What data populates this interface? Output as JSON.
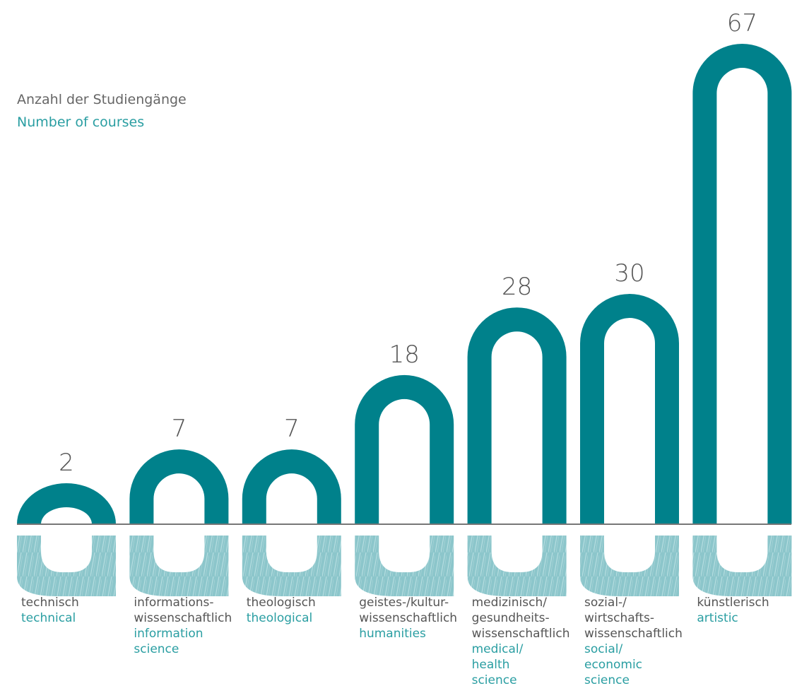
{
  "colors": {
    "bar": "#00818b",
    "hatch": "#8cc6cb",
    "hatch_line": "#b5dde0",
    "baseline": "#777777",
    "label_de": "#555555",
    "label_en": "#2a9ea2",
    "value": "#555555"
  },
  "chart_data": {
    "type": "bar",
    "title": "",
    "ylabel_de": "Anzahl der Studiengänge",
    "ylabel_en": "Number of courses",
    "categories": [
      {
        "de": "technisch",
        "en": "technical"
      },
      {
        "de": "informations-\nwissenschaftlich",
        "en": "information\nscience"
      },
      {
        "de": "theologisch",
        "en": "theological"
      },
      {
        "de": "geistes-/kultur-\nwissenschaftlich",
        "en": "humanities"
      },
      {
        "de": "medizinisch/\ngesundheits-\nwissenschaftlich",
        "en": "medical/\nhealth\nscience"
      },
      {
        "de": "sozial-/\nwirtschafts-\nwissenschaftlich",
        "en": "social/\neconomic\nscience"
      },
      {
        "de": "künstlerisch",
        "en": "artistic"
      }
    ],
    "values": [
      2,
      7,
      7,
      18,
      28,
      30,
      67
    ],
    "value_labels": [
      "2",
      "7",
      "7",
      "18",
      "28",
      "30",
      "67"
    ],
    "ylim": [
      0,
      67
    ],
    "grid": false,
    "legend": "none"
  }
}
